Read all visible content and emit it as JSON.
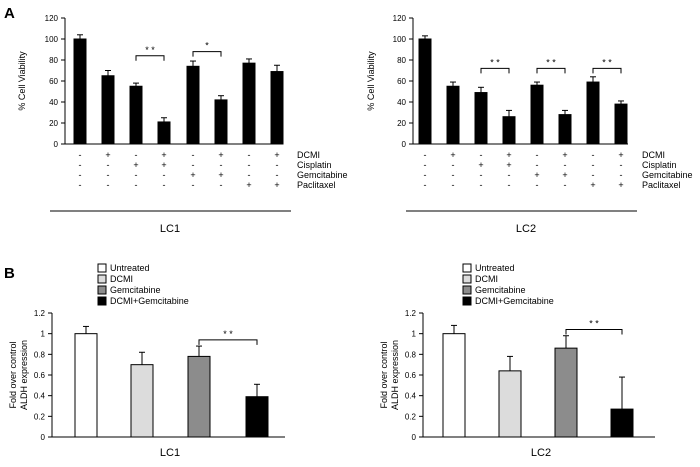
{
  "panels": [
    {
      "letter": "A"
    },
    {
      "letter": "B"
    }
  ],
  "chart_data": [
    {
      "type": "bar",
      "panel": "A",
      "group_label": "LC1",
      "ylabel": "% Cell Viability",
      "ylim": [
        0,
        120
      ],
      "yticks": [
        "0",
        "20",
        "40",
        "60",
        "80",
        "100",
        "120"
      ],
      "values": [
        100,
        65,
        55,
        21,
        74,
        42,
        77,
        69
      ],
      "errors": [
        4,
        5,
        3,
        4,
        5,
        4,
        4,
        6
      ],
      "treatment_rows": [
        {
          "name": "DCMI",
          "marks": [
            "-",
            "+",
            "-",
            "+",
            "-",
            "+",
            "-",
            "+"
          ]
        },
        {
          "name": "Cisplatin",
          "marks": [
            "-",
            "-",
            "+",
            "+",
            "-",
            "-",
            "-",
            "-"
          ]
        },
        {
          "name": "Gemcitabine",
          "marks": [
            "-",
            "-",
            "-",
            "-",
            "+",
            "+",
            "-",
            "-"
          ]
        },
        {
          "name": "Paclitaxel",
          "marks": [
            "-",
            "-",
            "-",
            "-",
            "-",
            "-",
            "+",
            "+"
          ]
        }
      ],
      "significance": [
        {
          "from": 2,
          "to": 3,
          "label": "* *",
          "y": 84
        },
        {
          "from": 4,
          "to": 5,
          "label": "*",
          "y": 88
        }
      ]
    },
    {
      "type": "bar",
      "panel": "A",
      "group_label": "LC2",
      "ylabel": "% Cell Viability",
      "ylim": [
        0,
        120
      ],
      "yticks": [
        "0",
        "20",
        "40",
        "60",
        "80",
        "100",
        "120"
      ],
      "values": [
        100,
        55,
        49,
        26,
        56,
        28,
        59,
        38
      ],
      "errors": [
        3,
        4,
        5,
        6,
        3,
        4,
        5,
        3
      ],
      "treatment_rows": [
        {
          "name": "DCMI",
          "marks": [
            "-",
            "+",
            "-",
            "+",
            "-",
            "+",
            "-",
            "+"
          ]
        },
        {
          "name": "Cisplatin",
          "marks": [
            "-",
            "-",
            "+",
            "+",
            "-",
            "-",
            "-",
            "-"
          ]
        },
        {
          "name": "Gemcitabine",
          "marks": [
            "-",
            "-",
            "-",
            "-",
            "+",
            "+",
            "-",
            "-"
          ]
        },
        {
          "name": "Paclitaxel",
          "marks": [
            "-",
            "-",
            "-",
            "-",
            "-",
            "-",
            "+",
            "+"
          ]
        }
      ],
      "significance": [
        {
          "from": 2,
          "to": 3,
          "label": "* *",
          "y": 72
        },
        {
          "from": 4,
          "to": 5,
          "label": "* *",
          "y": 72
        },
        {
          "from": 6,
          "to": 7,
          "label": "* *",
          "y": 72
        }
      ]
    },
    {
      "type": "bar",
      "panel": "B",
      "group_label": "LC1",
      "ylabel": [
        "Fold over control",
        "ALDH expression"
      ],
      "ylim": [
        0,
        1.2
      ],
      "yticks": [
        "0",
        "0.2",
        "0.4",
        "0.6",
        "0.8",
        "1",
        "1.2"
      ],
      "categories": [
        "Untreated",
        "DCMI",
        "Gemcitabine",
        "DCMI+Gemcitabine"
      ],
      "colors": [
        "#ffffff",
        "#dcdcdc",
        "#8c8c8c",
        "#000000"
      ],
      "values": [
        1.0,
        0.7,
        0.78,
        0.39
      ],
      "errors": [
        0.07,
        0.12,
        0.1,
        0.12
      ],
      "legend": [
        "Untreated",
        "DCMI",
        "Gemcitabine",
        "DCMI+Gemcitabine"
      ],
      "significance": [
        {
          "from": 2,
          "to": 3,
          "label": "* *",
          "y": 0.94
        }
      ]
    },
    {
      "type": "bar",
      "panel": "B",
      "group_label": "LC2",
      "ylabel": [
        "Fold over control",
        "ALDH expression"
      ],
      "ylim": [
        0,
        1.2
      ],
      "yticks": [
        "0",
        "0.2",
        "0.4",
        "0.6",
        "0.8",
        "1",
        "1.2"
      ],
      "categories": [
        "Untreated",
        "DCMI",
        "Gemcitabine",
        "DCMI+Gemcitabine"
      ],
      "colors": [
        "#ffffff",
        "#dcdcdc",
        "#8c8c8c",
        "#000000"
      ],
      "values": [
        1.0,
        0.64,
        0.86,
        0.27
      ],
      "errors": [
        0.08,
        0.14,
        0.12,
        0.31
      ],
      "legend": [
        "Untreated",
        "DCMI",
        "Gemcitabine",
        "DCMI+Gemcitabine"
      ],
      "significance": [
        {
          "from": 2,
          "to": 3,
          "label": "* *",
          "y": 1.04
        }
      ]
    }
  ]
}
